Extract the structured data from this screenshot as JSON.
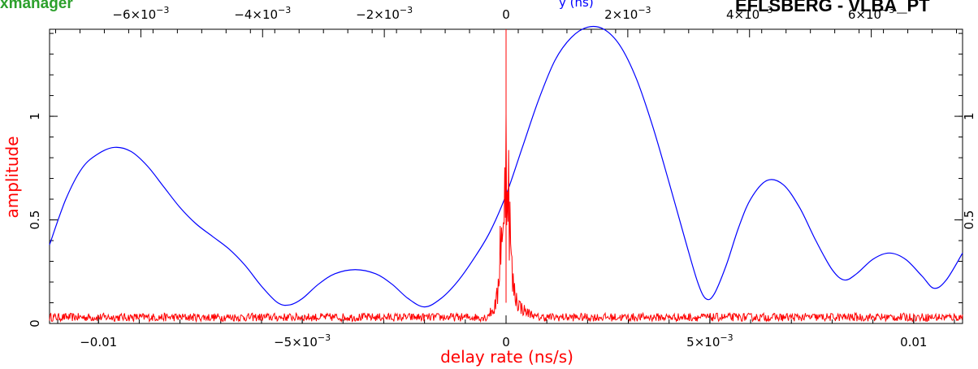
{
  "header": {
    "left_label": "xmanager",
    "right_label": "EFLSBERG - VLBA_PT",
    "center_label": "y (ns)"
  },
  "chart_data": {
    "type": "line",
    "xlabel": "delay rate (ns/s)",
    "ylabel": "amplitude",
    "x_range": [
      -0.0112,
      0.0112
    ],
    "top_x_range": [
      -0.0075,
      0.0075
    ],
    "ylim": [
      0,
      1.42
    ],
    "bottom_ticks": [
      {
        "value": -0.01,
        "label": "−0.01"
      },
      {
        "value": -0.005,
        "label": "−5×10",
        "exp": "−3"
      },
      {
        "value": 0,
        "label": "0"
      },
      {
        "value": 0.005,
        "label": "5×10",
        "exp": "−3"
      },
      {
        "value": 0.01,
        "label": "0.01"
      }
    ],
    "top_ticks": [
      {
        "value": -0.006,
        "label": "−6×10",
        "exp": "−3"
      },
      {
        "value": -0.004,
        "label": "−4×10",
        "exp": "−3"
      },
      {
        "value": -0.002,
        "label": "−2×10",
        "exp": "−3"
      },
      {
        "value": 0,
        "label": "0"
      },
      {
        "value": 0.002,
        "label": "2×10",
        "exp": "−3"
      },
      {
        "value": 0.004,
        "label": "4×10",
        "exp": "−3"
      },
      {
        "value": 0.006,
        "label": "6×10",
        "exp": "−3"
      }
    ],
    "left_ticks": [
      {
        "value": 0,
        "label": "0"
      },
      {
        "value": 0.5,
        "label": "0.5"
      },
      {
        "value": 1,
        "label": "1"
      }
    ],
    "right_ticks": [
      {
        "value": 0.5,
        "label": "0.5"
      },
      {
        "value": 1,
        "label": "1"
      }
    ],
    "series": [
      {
        "color": "#0000ff",
        "axis": "bottom",
        "points": [
          [
            -0.0112,
            0.38
          ],
          [
            -0.0108,
            0.6
          ],
          [
            -0.0104,
            0.75
          ],
          [
            -0.01,
            0.82
          ],
          [
            -0.0096,
            0.85
          ],
          [
            -0.0092,
            0.83
          ],
          [
            -0.0088,
            0.76
          ],
          [
            -0.0084,
            0.66
          ],
          [
            -0.008,
            0.56
          ],
          [
            -0.0076,
            0.48
          ],
          [
            -0.0072,
            0.42
          ],
          [
            -0.0068,
            0.36
          ],
          [
            -0.0064,
            0.28
          ],
          [
            -0.006,
            0.18
          ],
          [
            -0.0056,
            0.1
          ],
          [
            -0.0053,
            0.09
          ],
          [
            -0.005,
            0.12
          ],
          [
            -0.0046,
            0.19
          ],
          [
            -0.0042,
            0.24
          ],
          [
            -0.0037,
            0.26
          ],
          [
            -0.0032,
            0.24
          ],
          [
            -0.0028,
            0.19
          ],
          [
            -0.0024,
            0.12
          ],
          [
            -0.002,
            0.08
          ],
          [
            -0.0016,
            0.12
          ],
          [
            -0.0012,
            0.2
          ],
          [
            -0.0008,
            0.31
          ],
          [
            -0.0004,
            0.44
          ],
          [
            0.0,
            0.62
          ],
          [
            0.0004,
            0.85
          ],
          [
            0.0008,
            1.08
          ],
          [
            0.0012,
            1.27
          ],
          [
            0.0016,
            1.38
          ],
          [
            0.002,
            1.43
          ],
          [
            0.0024,
            1.42
          ],
          [
            0.0028,
            1.34
          ],
          [
            0.0032,
            1.18
          ],
          [
            0.0036,
            0.95
          ],
          [
            0.004,
            0.68
          ],
          [
            0.0044,
            0.4
          ],
          [
            0.0047,
            0.2
          ],
          [
            0.0049,
            0.12
          ],
          [
            0.0051,
            0.14
          ],
          [
            0.0054,
            0.28
          ],
          [
            0.0057,
            0.46
          ],
          [
            0.006,
            0.6
          ],
          [
            0.0064,
            0.69
          ],
          [
            0.0068,
            0.67
          ],
          [
            0.0072,
            0.56
          ],
          [
            0.0076,
            0.4
          ],
          [
            0.008,
            0.26
          ],
          [
            0.0083,
            0.21
          ],
          [
            0.0086,
            0.24
          ],
          [
            0.009,
            0.31
          ],
          [
            0.0094,
            0.34
          ],
          [
            0.0098,
            0.31
          ],
          [
            0.0102,
            0.23
          ],
          [
            0.0105,
            0.17
          ],
          [
            0.0108,
            0.21
          ],
          [
            0.0112,
            0.34
          ]
        ]
      },
      {
        "color": "#ff0000",
        "axis": "bottom",
        "baseline": 0.03,
        "noise": 0.02,
        "peaks": [
          [
            -0.00045,
            0.06
          ],
          [
            -0.0003,
            0.1
          ],
          [
            -0.0002,
            0.2
          ],
          [
            -0.00015,
            0.55
          ],
          [
            -0.0001,
            0.75
          ],
          [
            -5e-05,
            0.55
          ],
          [
            0.0,
            1.42
          ],
          [
            3e-05,
            1.15
          ],
          [
            8e-05,
            0.85
          ],
          [
            0.00012,
            0.45
          ],
          [
            0.00018,
            0.25
          ],
          [
            0.00025,
            0.18
          ],
          [
            0.00035,
            0.12
          ],
          [
            0.0005,
            0.08
          ],
          [
            0.0007,
            0.06
          ]
        ]
      }
    ]
  }
}
